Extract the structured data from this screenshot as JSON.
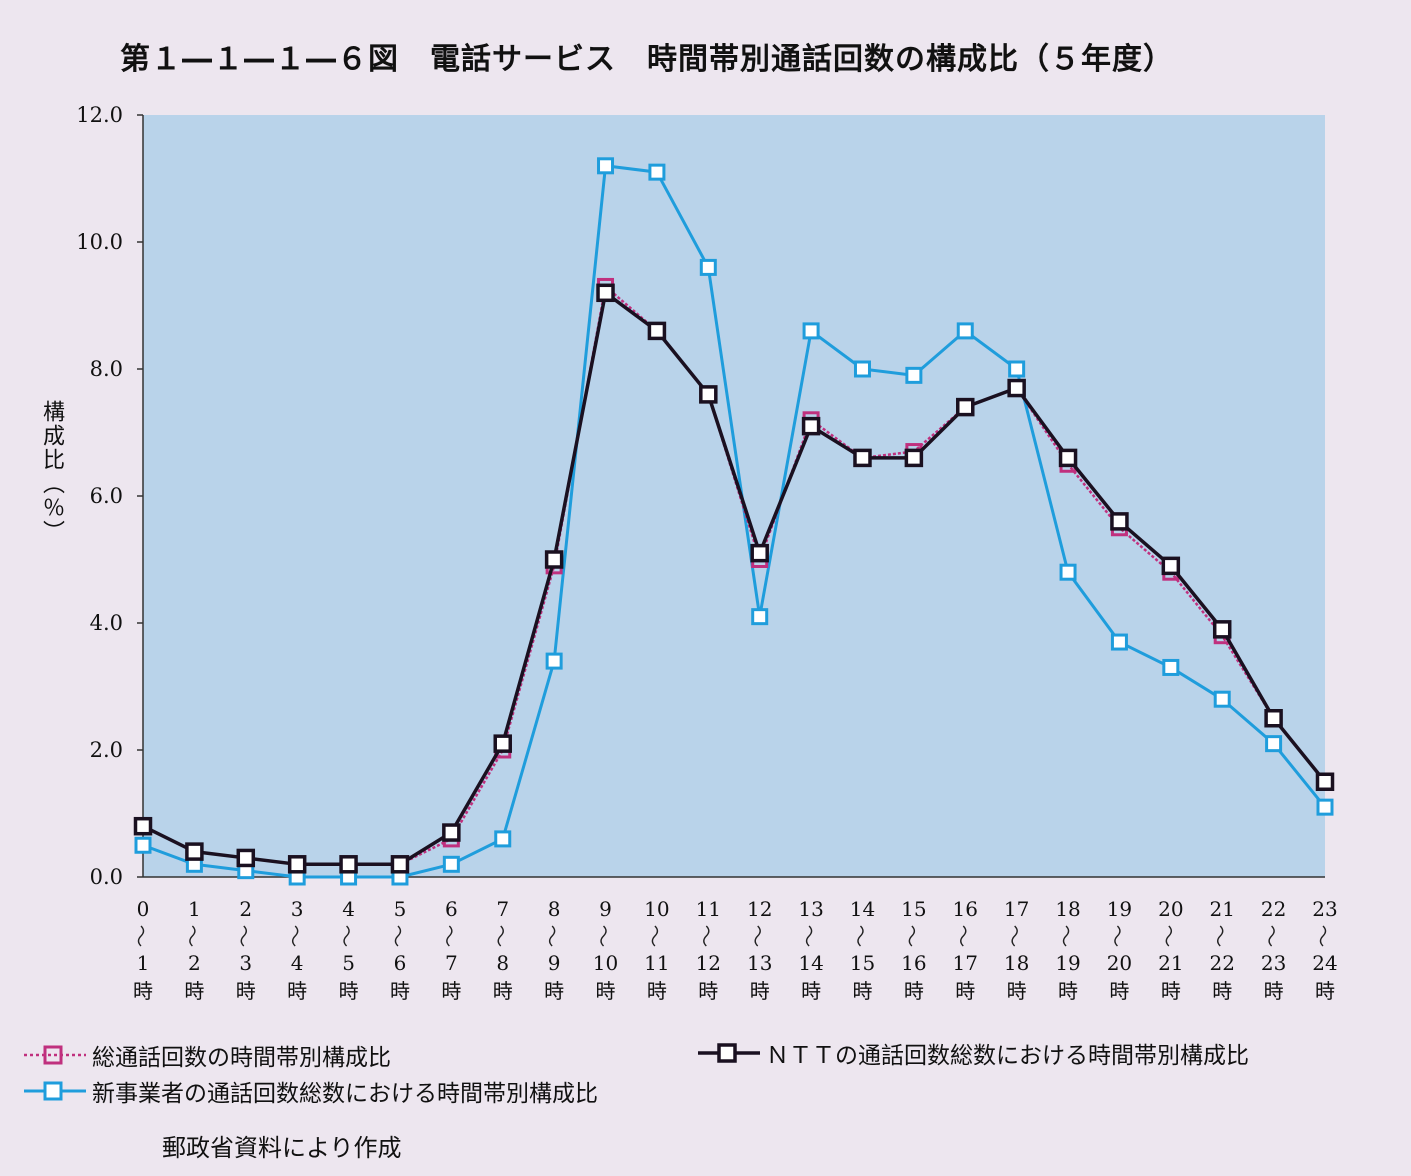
{
  "title": "第１―１―１―６図　電話サービス　時間帯別通話回数の構成比（５年度）",
  "source_note": "郵政省資料により作成",
  "chart_data": {
    "type": "line",
    "title": "第１―１―１―６図　電話サービス　時間帯別通話回数の構成比（５年度）",
    "ylabel": "構成比（％）",
    "xlabel": "",
    "ylim": [
      0,
      12
    ],
    "y_ticks": [
      "0.0",
      "2.0",
      "4.0",
      "6.0",
      "8.0",
      "10.0",
      "12.0"
    ],
    "x_ticks": [
      {
        "from": "0",
        "to": "1",
        "unit": "時"
      },
      {
        "from": "1",
        "to": "2",
        "unit": "時"
      },
      {
        "from": "2",
        "to": "3",
        "unit": "時"
      },
      {
        "from": "3",
        "to": "4",
        "unit": "時"
      },
      {
        "from": "4",
        "to": "5",
        "unit": "時"
      },
      {
        "from": "5",
        "to": "6",
        "unit": "時"
      },
      {
        "from": "6",
        "to": "7",
        "unit": "時"
      },
      {
        "from": "7",
        "to": "8",
        "unit": "時"
      },
      {
        "from": "8",
        "to": "9",
        "unit": "時"
      },
      {
        "from": "9",
        "to": "10",
        "unit": "時"
      },
      {
        "from": "10",
        "to": "11",
        "unit": "時"
      },
      {
        "from": "11",
        "to": "12",
        "unit": "時"
      },
      {
        "from": "12",
        "to": "13",
        "unit": "時"
      },
      {
        "from": "13",
        "to": "14",
        "unit": "時"
      },
      {
        "from": "14",
        "to": "15",
        "unit": "時"
      },
      {
        "from": "15",
        "to": "16",
        "unit": "時"
      },
      {
        "from": "16",
        "to": "17",
        "unit": "時"
      },
      {
        "from": "17",
        "to": "18",
        "unit": "時"
      },
      {
        "from": "18",
        "to": "19",
        "unit": "時"
      },
      {
        "from": "19",
        "to": "20",
        "unit": "時"
      },
      {
        "from": "20",
        "to": "21",
        "unit": "時"
      },
      {
        "from": "21",
        "to": "22",
        "unit": "時"
      },
      {
        "from": "22",
        "to": "23",
        "unit": "時"
      },
      {
        "from": "23",
        "to": "24",
        "unit": "時"
      }
    ],
    "legend_placement": "bottom",
    "plot_background": "#b9d3ea",
    "series": [
      {
        "name": "総通話回数の時間帯別構成比",
        "color": "#c0307e",
        "style": "dotted",
        "values": [
          0.8,
          0.4,
          0.3,
          0.2,
          0.2,
          0.2,
          0.6,
          2.0,
          4.9,
          9.3,
          8.6,
          7.6,
          5.0,
          7.2,
          6.6,
          6.7,
          7.4,
          7.7,
          6.5,
          5.5,
          4.8,
          3.8,
          2.5,
          1.5
        ]
      },
      {
        "name": "新事業者の通話回数総数における時間帯別構成比",
        "color": "#1f9ddc",
        "style": "solid",
        "values": [
          0.5,
          0.2,
          0.1,
          0.0,
          0.0,
          0.0,
          0.2,
          0.6,
          3.4,
          11.2,
          11.1,
          9.6,
          4.1,
          8.6,
          8.0,
          7.9,
          8.6,
          8.0,
          4.8,
          3.7,
          3.3,
          2.8,
          2.1,
          1.1
        ]
      },
      {
        "name": "ＮＴＴの通話回数総数における時間帯別構成比",
        "color": "#1a1020",
        "style": "solid",
        "values": [
          0.8,
          0.4,
          0.3,
          0.2,
          0.2,
          0.2,
          0.7,
          2.1,
          5.0,
          9.2,
          8.6,
          7.6,
          5.1,
          7.1,
          6.6,
          6.6,
          7.4,
          7.7,
          6.6,
          5.6,
          4.9,
          3.9,
          2.5,
          1.5
        ]
      }
    ]
  }
}
